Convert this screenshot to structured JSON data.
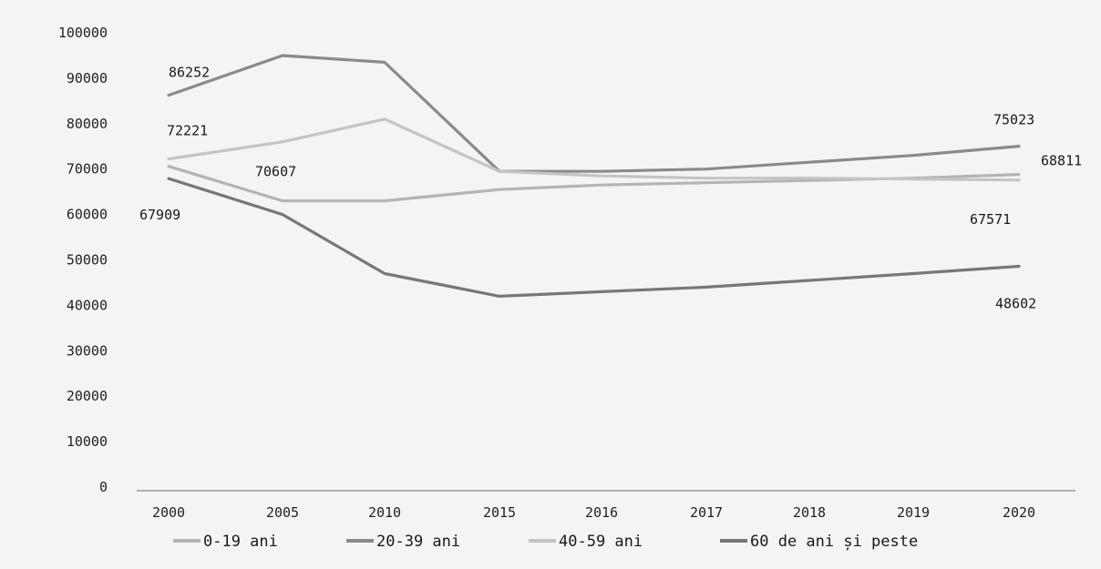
{
  "chart_data": {
    "type": "line",
    "title": "",
    "xlabel": "",
    "ylabel": "",
    "categories": [
      "2000",
      "2005",
      "2010",
      "2015",
      "2016",
      "2017",
      "2018",
      "2019",
      "2020"
    ],
    "ylim": [
      0,
      100000
    ],
    "yticks": [
      "0",
      "10000",
      "20000",
      "30000",
      "40000",
      "50000",
      "60000",
      "70000",
      "80000",
      "90000",
      "100000"
    ],
    "grid": false,
    "legend_position": "bottom",
    "series": [
      {
        "name": "0-19 ani",
        "color": "#b4b4b4",
        "values": [
          70607,
          63000,
          63000,
          65500,
          66500,
          67000,
          67500,
          68000,
          68811
        ]
      },
      {
        "name": "20-39 ani",
        "color": "#8a8a8a",
        "values": [
          86252,
          95000,
          93500,
          69500,
          69500,
          70000,
          71500,
          73000,
          75023
        ]
      },
      {
        "name": "40-59 ani",
        "color": "#c4c4c4",
        "values": [
          72221,
          76000,
          81000,
          69500,
          68500,
          68000,
          68000,
          67800,
          67571
        ]
      },
      {
        "name": "60 de ani și peste",
        "color": "#777777",
        "values": [
          67909,
          60000,
          47000,
          42000,
          43000,
          44000,
          45500,
          47000,
          48602
        ]
      }
    ],
    "annotations": [
      {
        "series": 1,
        "index": 0,
        "text": "86252"
      },
      {
        "series": 2,
        "index": 0,
        "text": "72221"
      },
      {
        "series": 0,
        "index": 0,
        "text": "70607"
      },
      {
        "series": 3,
        "index": 0,
        "text": "67909"
      },
      {
        "series": 1,
        "index": 8,
        "text": "75023"
      },
      {
        "series": 0,
        "index": 8,
        "text": "68811"
      },
      {
        "series": 2,
        "index": 8,
        "text": "67571"
      },
      {
        "series": 3,
        "index": 8,
        "text": "48602"
      }
    ]
  }
}
